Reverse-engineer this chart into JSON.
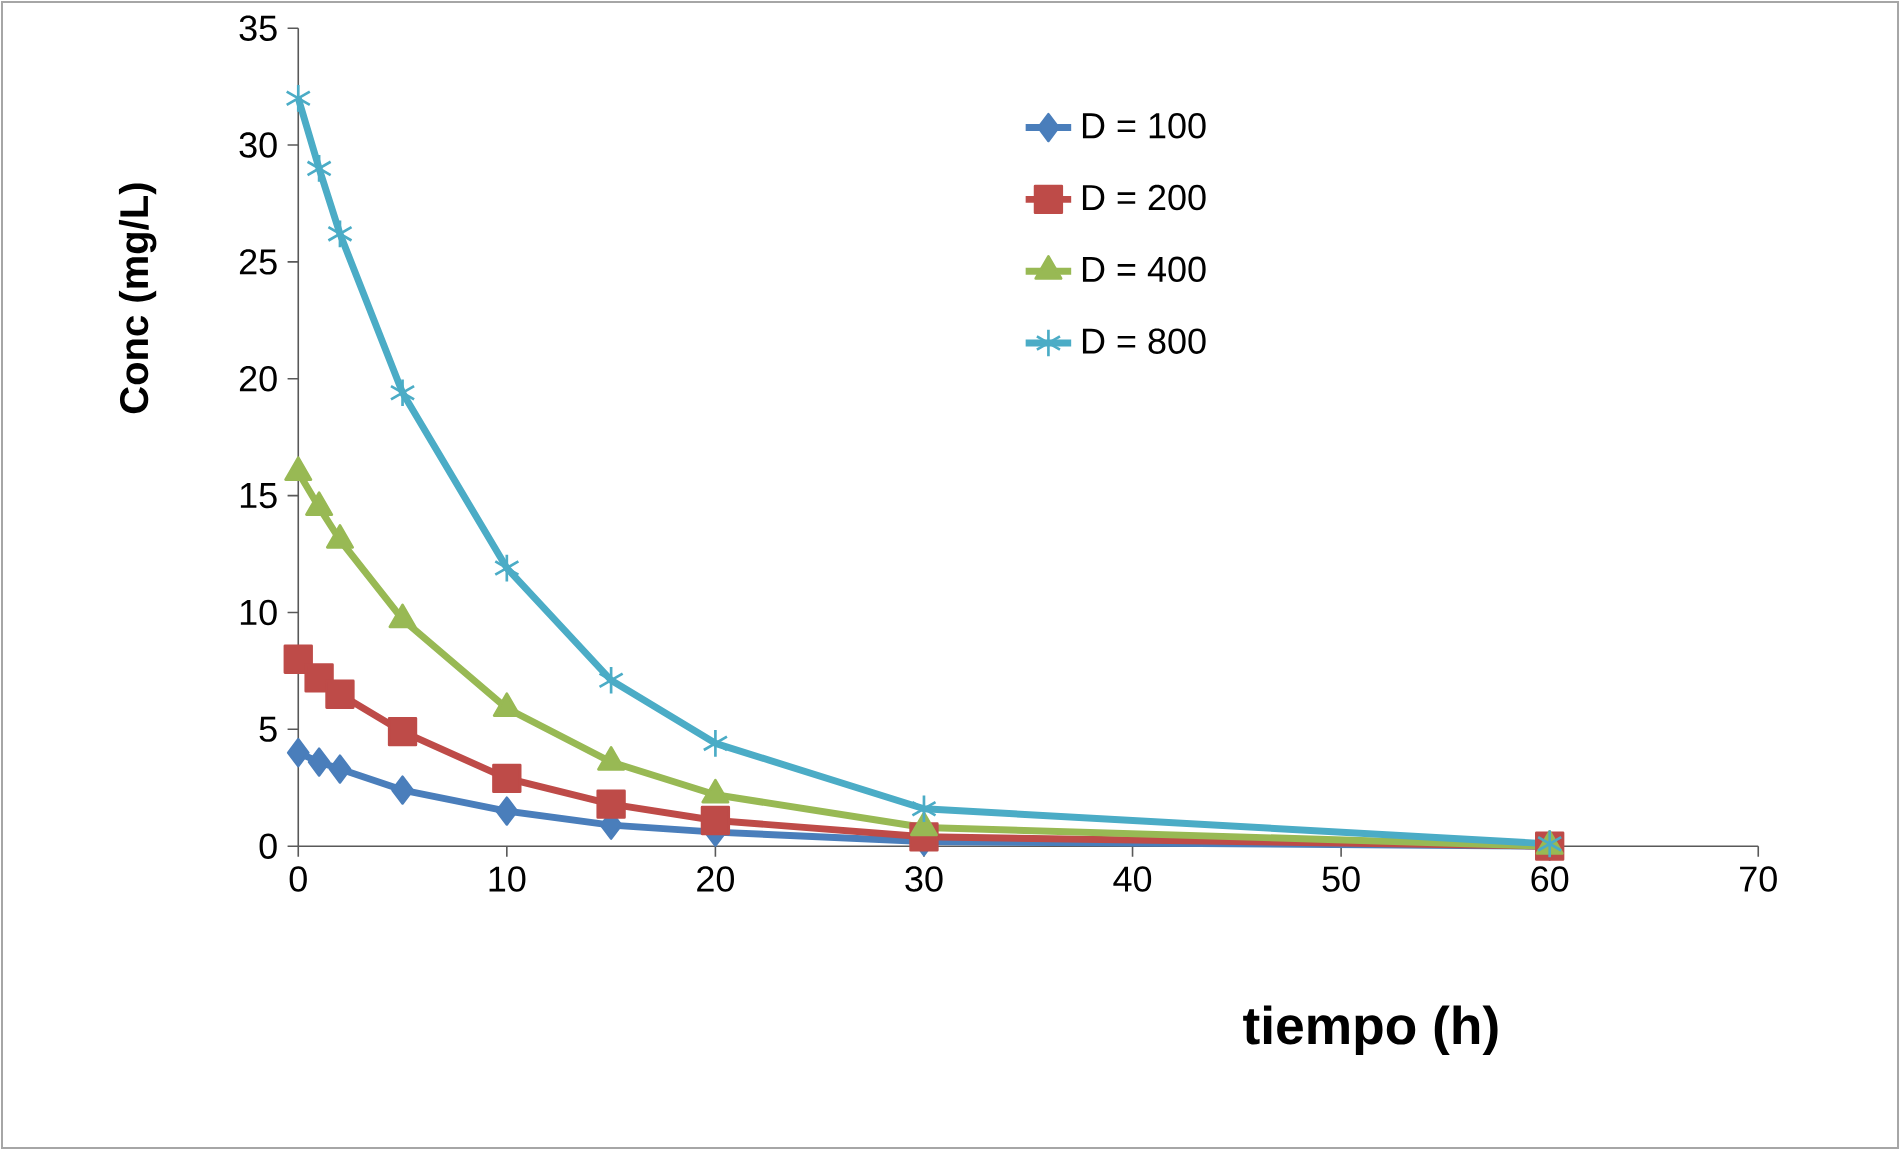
{
  "chart_data": {
    "type": "line",
    "xlabel": "tiempo (h)",
    "ylabel": "Conc (mg/L)",
    "x": [
      0,
      1,
      2,
      5,
      10,
      15,
      20,
      30,
      60
    ],
    "xlim": [
      0,
      70
    ],
    "xticks": [
      0,
      10,
      20,
      30,
      40,
      50,
      60,
      70
    ],
    "ylim": [
      0,
      35
    ],
    "yticks": [
      0,
      5,
      10,
      15,
      20,
      25,
      30,
      35
    ],
    "grid": false,
    "legend": "top right",
    "series": [
      {
        "name": "D = 100",
        "color": "#4a7ebb",
        "marker": "diamond",
        "values": [
          4,
          3.6,
          3.3,
          2.4,
          1.5,
          0.9,
          0.6,
          0.2,
          0.0
        ]
      },
      {
        "name": "D = 200",
        "color": "#be4b48",
        "marker": "square",
        "values": [
          8,
          7.2,
          6.5,
          4.9,
          2.9,
          1.8,
          1.1,
          0.4,
          0.0
        ]
      },
      {
        "name": "D = 400",
        "color": "#98b954",
        "marker": "triangle",
        "values": [
          16,
          14.5,
          13.1,
          9.7,
          5.9,
          3.6,
          2.2,
          0.8,
          0.0
        ]
      },
      {
        "name": "D = 800",
        "color": "#4bacc6",
        "marker": "cross",
        "values": [
          32,
          29,
          26.2,
          19.4,
          11.9,
          7.1,
          4.4,
          1.6,
          0.1
        ]
      }
    ]
  }
}
